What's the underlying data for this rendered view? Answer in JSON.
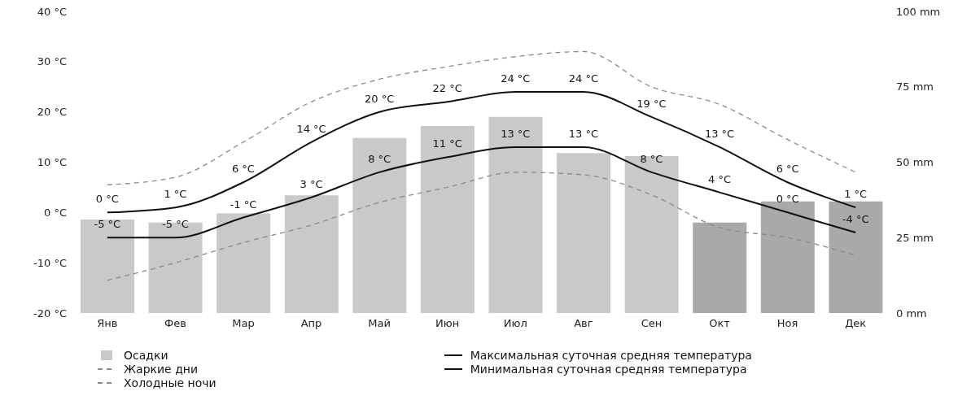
{
  "chart_data": {
    "type": "bar",
    "categories": [
      "Янв",
      "Фев",
      "Мар",
      "Апр",
      "Май",
      "Июн",
      "Июл",
      "Авг",
      "Сен",
      "Окт",
      "Ноя",
      "Дек"
    ],
    "series": [
      {
        "name": "Осадки",
        "axis": "y2",
        "colors": [
          "#c9c9c9",
          "#c9c9c9",
          "#c9c9c9",
          "#c9c9c9",
          "#c9c9c9",
          "#c9c9c9",
          "#c9c9c9",
          "#c9c9c9",
          "#c9c9c9",
          "#a9a9a9",
          "#a9a9a9",
          "#a9a9a9"
        ],
        "color": "#c9c9c9",
        "values": [
          31,
          30,
          33,
          39,
          58,
          62,
          65,
          53,
          52,
          30,
          37,
          37
        ]
      },
      {
        "name": "Жаркие дни",
        "type": "line",
        "color": "#8a8a8a",
        "line_style": "dashed",
        "values": [
          5.5,
          7,
          14,
          22,
          26.5,
          29,
          31,
          32,
          25,
          21.5,
          14.5,
          8
        ]
      },
      {
        "name": "Холодные ночи",
        "type": "line",
        "color": "#8a8a8a",
        "line_style": "dashed",
        "values": [
          -13.5,
          -10,
          -6,
          -2.5,
          2,
          5,
          8,
          7.5,
          3.5,
          -3,
          -5,
          -8.5
        ]
      },
      {
        "name": "Максимальная суточная средняя температура",
        "type": "line",
        "color": "#111111",
        "line_style": "solid",
        "values": [
          0,
          1,
          6,
          14,
          20,
          22,
          24,
          24,
          19,
          13,
          6,
          1
        ],
        "value_labels": [
          "0 °C",
          "1 °C",
          "6 °C",
          "14 °C",
          "20 °C",
          "22 °C",
          "24 °C",
          "24 °C",
          "19 °C",
          "13 °C",
          "6 °C",
          "1 °C"
        ]
      },
      {
        "name": "Минимальная суточная средняя температура",
        "type": "line",
        "color": "#111111",
        "line_style": "solid",
        "values": [
          -5,
          -5,
          -1,
          3,
          8,
          11,
          13,
          13,
          8,
          4,
          0,
          -4
        ],
        "value_labels": [
          "-5 °C",
          "-5 °C",
          "-1 °C",
          "3 °C",
          "8 °C",
          "11 °C",
          "13 °C",
          "13 °C",
          "8 °C",
          "4 °C",
          "0 °C",
          "-4 °C"
        ]
      }
    ],
    "ylim": [
      -20,
      40
    ],
    "yticks": [
      {
        "value": -20,
        "label": "-20 °C"
      },
      {
        "value": -10,
        "label": "-10 °C"
      },
      {
        "value": 0,
        "label": "0 °C"
      },
      {
        "value": 10,
        "label": "10 °C"
      },
      {
        "value": 20,
        "label": "20 °C"
      },
      {
        "value": 30,
        "label": "30 °C"
      },
      {
        "value": 40,
        "label": "40 °C"
      }
    ],
    "y2lim": [
      0,
      100
    ],
    "y2ticks": [
      {
        "value": 0,
        "label": "0 mm"
      },
      {
        "value": 25,
        "label": "25 mm"
      },
      {
        "value": 50,
        "label": "50 mm"
      },
      {
        "value": 75,
        "label": "75 mm"
      },
      {
        "value": 100,
        "label": "100 mm"
      }
    ],
    "grid": false,
    "legend": "bottom",
    "marker": "none"
  }
}
